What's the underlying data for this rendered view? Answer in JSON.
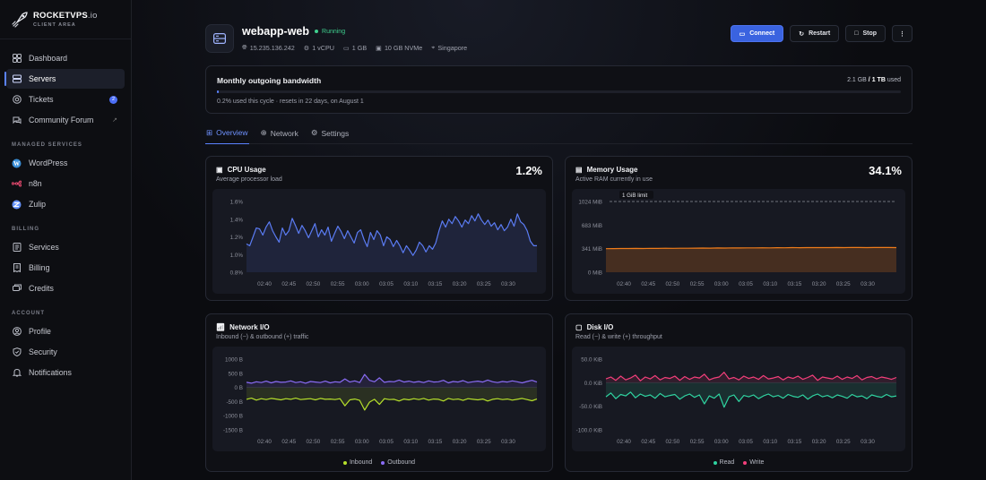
{
  "brand": {
    "name_bold": "ROCKETVPS",
    "name_light": ".io",
    "subtitle": "CLIENT AREA"
  },
  "nav": {
    "main": [
      {
        "label": "Dashboard",
        "icon": "grid-icon"
      },
      {
        "label": "Servers",
        "icon": "server-icon",
        "active": true
      },
      {
        "label": "Tickets",
        "icon": "lifebuoy-icon",
        "badge": "2"
      },
      {
        "label": "Community Forum",
        "icon": "chat-icon",
        "external": true
      }
    ],
    "managed_title": "MANAGED SERVICES",
    "managed": [
      {
        "label": "WordPress",
        "icon": "wordpress-icon"
      },
      {
        "label": "n8n",
        "icon": "n8n-icon"
      },
      {
        "label": "Zulip",
        "icon": "zulip-icon"
      }
    ],
    "billing_title": "BILLING",
    "billing": [
      {
        "label": "Services",
        "icon": "list-icon"
      },
      {
        "label": "Billing",
        "icon": "invoice-icon"
      },
      {
        "label": "Credits",
        "icon": "credits-icon"
      }
    ],
    "account_title": "ACCOUNT",
    "account": [
      {
        "label": "Profile",
        "icon": "user-icon"
      },
      {
        "label": "Security",
        "icon": "shield-icon"
      },
      {
        "label": "Notifications",
        "icon": "bell-icon"
      }
    ]
  },
  "server": {
    "name": "webapp-web",
    "status": "Running",
    "ip": "15.235.136.242",
    "cpu": "1 vCPU",
    "ram": "1 GB",
    "disk": "10 GB NVMe",
    "location": "Singapore"
  },
  "actions": {
    "connect": "Connect",
    "restart": "Restart",
    "stop": "Stop"
  },
  "bandwidth": {
    "title": "Monthly outgoing bandwidth",
    "used": "2.1 GB",
    "sep": " / ",
    "total": "1 TB",
    "suffix": " used",
    "percent": 0.2,
    "note": "0.2% used this cycle · resets in 22 days, on August 1"
  },
  "tabs": [
    {
      "label": "Overview",
      "active": true
    },
    {
      "label": "Network"
    },
    {
      "label": "Settings"
    }
  ],
  "colors": {
    "accent": "#5b82ff",
    "cpu": "#5b7cf4",
    "memory": "#f07c1a",
    "inbound": "#b6e02b",
    "outbound": "#8a6cf5",
    "read": "#2fd3a0",
    "write": "#f43f7b"
  },
  "cards": {
    "cpu": {
      "title": "CPU Usage",
      "subtitle": "Average processor load",
      "value": "1.2%"
    },
    "memory": {
      "title": "Memory Usage",
      "subtitle": "Active RAM currently in use",
      "value": "34.1%",
      "limit_label": "1 GiB limit"
    },
    "network": {
      "title": "Network I/O",
      "subtitle": "Inbound (−) & outbound (+) traffic",
      "legend": [
        "Inbound",
        "Outbound"
      ]
    },
    "disk": {
      "title": "Disk I/O",
      "subtitle": "Read (−) & write (+) throughput",
      "legend": [
        "Read",
        "Write"
      ]
    }
  },
  "chart_data": [
    {
      "type": "line",
      "name": "cpu",
      "ylim": [
        0.8,
        1.6
      ],
      "yticks": [
        "1.6%",
        "1.4%",
        "1.2%",
        "1.0%",
        "0.8%"
      ],
      "xticks": [
        "02:40",
        "02:45",
        "02:50",
        "02:55",
        "03:00",
        "03:05",
        "03:10",
        "03:15",
        "03:20",
        "03:25",
        "03:30"
      ],
      "series": [
        {
          "values": [
            1.12,
            1.1,
            1.2,
            1.3,
            1.29,
            1.22,
            1.31,
            1.37,
            1.27,
            1.2,
            1.14,
            1.3,
            1.22,
            1.27,
            1.41,
            1.33,
            1.24,
            1.33,
            1.27,
            1.19,
            1.27,
            1.35,
            1.2,
            1.28,
            1.22,
            1.31,
            1.15,
            1.24,
            1.32,
            1.26,
            1.18,
            1.27,
            1.2,
            1.13,
            1.25,
            1.28,
            1.17,
            1.09,
            1.25,
            1.17,
            1.27,
            1.22,
            1.1,
            1.2,
            1.17,
            1.09,
            1.16,
            1.1,
            1.02,
            1.1,
            1.05,
            0.99,
            1.05,
            1.14,
            1.1,
            1.03,
            1.1,
            1.06,
            1.13,
            1.27,
            1.38,
            1.31,
            1.4,
            1.35,
            1.43,
            1.38,
            1.31,
            1.39,
            1.35,
            1.44,
            1.38,
            1.46,
            1.39,
            1.34,
            1.39,
            1.32,
            1.36,
            1.28,
            1.34,
            1.27,
            1.31,
            1.4,
            1.32,
            1.46,
            1.37,
            1.34,
            1.27,
            1.15,
            1.1,
            1.1
          ]
        }
      ]
    },
    {
      "type": "area",
      "name": "memory",
      "ylim": [
        0,
        1024
      ],
      "yticks": [
        "1024 MiB",
        "683 MiB",
        "341 MiB",
        "0 MiB"
      ],
      "xticks": [
        "02:40",
        "02:45",
        "02:50",
        "02:55",
        "03:00",
        "03:05",
        "03:10",
        "03:15",
        "03:20",
        "03:25",
        "03:30"
      ],
      "series": [
        {
          "values": [
            341,
            342,
            344,
            343,
            345,
            344,
            346,
            345,
            347,
            346,
            348,
            347,
            349,
            350,
            349,
            351,
            350,
            352,
            351,
            353,
            352,
            354,
            353,
            355,
            354,
            356,
            355,
            357,
            356,
            357,
            356,
            358,
            357,
            359,
            358,
            357,
            358,
            359,
            358,
            357
          ]
        }
      ]
    },
    {
      "type": "line",
      "name": "network",
      "ylim": [
        -1500,
        1000
      ],
      "yticks": [
        "1000 B",
        "500 B",
        "0 B",
        "-500 B",
        "-1000 B",
        "-1500 B"
      ],
      "xticks": [
        "02:40",
        "02:45",
        "02:50",
        "02:55",
        "03:00",
        "03:05",
        "03:10",
        "03:15",
        "03:20",
        "03:25",
        "03:30"
      ],
      "series": [
        {
          "name": "Outbound",
          "values": [
            180,
            150,
            200,
            170,
            220,
            160,
            210,
            180,
            190,
            230,
            170,
            200,
            150,
            210,
            190,
            170,
            220,
            160,
            200,
            180,
            300,
            190,
            230,
            170,
            460,
            250,
            200,
            340,
            180,
            210,
            200,
            260,
            190,
            220,
            180,
            210,
            170,
            230,
            190,
            200,
            250,
            160,
            210,
            190,
            240,
            170,
            200,
            220,
            190,
            260,
            200,
            170,
            210,
            190,
            230,
            200,
            160,
            210,
            250,
            190
          ]
        },
        {
          "name": "Inbound",
          "values": [
            -420,
            -380,
            -450,
            -400,
            -430,
            -390,
            -410,
            -440,
            -400,
            -420,
            -380,
            -430,
            -410,
            -400,
            -440,
            -390,
            -420,
            -410,
            -430,
            -400,
            -650,
            -440,
            -410,
            -460,
            -800,
            -520,
            -420,
            -600,
            -400,
            -430,
            -420,
            -480,
            -410,
            -440,
            -400,
            -430,
            -390,
            -450,
            -410,
            -420,
            -480,
            -390,
            -430,
            -410,
            -460,
            -400,
            -420,
            -440,
            -410,
            -480,
            -420,
            -400,
            -430,
            -410,
            -450,
            -420,
            -390,
            -430,
            -470,
            -410
          ]
        }
      ]
    },
    {
      "type": "line",
      "name": "disk",
      "ylim": [
        -100,
        50
      ],
      "yticks": [
        "50.0 KiB",
        "0.0 KiB",
        "-50.0 KiB",
        "-100.0 KiB"
      ],
      "xticks": [
        "02:40",
        "02:45",
        "02:50",
        "02:55",
        "03:00",
        "03:05",
        "03:10",
        "03:15",
        "03:20",
        "03:25",
        "03:30"
      ],
      "series": [
        {
          "name": "Write",
          "values": [
            8,
            12,
            5,
            14,
            6,
            10,
            16,
            4,
            12,
            8,
            15,
            6,
            11,
            9,
            14,
            5,
            13,
            7,
            12,
            10,
            18,
            6,
            10,
            12,
            22,
            8,
            11,
            6,
            14,
            9,
            12,
            7,
            15,
            8,
            10,
            13,
            6,
            12,
            9,
            14,
            7,
            11,
            16,
            5,
            12,
            10,
            8,
            14,
            7,
            12,
            9,
            15,
            6,
            11,
            13,
            8,
            12,
            10,
            7,
            11
          ]
        },
        {
          "name": "Read",
          "values": [
            -30,
            -22,
            -34,
            -25,
            -28,
            -20,
            -32,
            -24,
            -29,
            -26,
            -33,
            -23,
            -30,
            -27,
            -25,
            -35,
            -28,
            -24,
            -31,
            -26,
            -45,
            -28,
            -33,
            -24,
            -52,
            -30,
            -26,
            -40,
            -27,
            -30,
            -26,
            -34,
            -28,
            -24,
            -30,
            -27,
            -33,
            -25,
            -29,
            -31,
            -26,
            -35,
            -28,
            -24,
            -30,
            -27,
            -32,
            -26,
            -29,
            -33,
            -25,
            -30,
            -28,
            -34,
            -26,
            -29,
            -31,
            -25,
            -30,
            -28
          ]
        }
      ]
    }
  ]
}
